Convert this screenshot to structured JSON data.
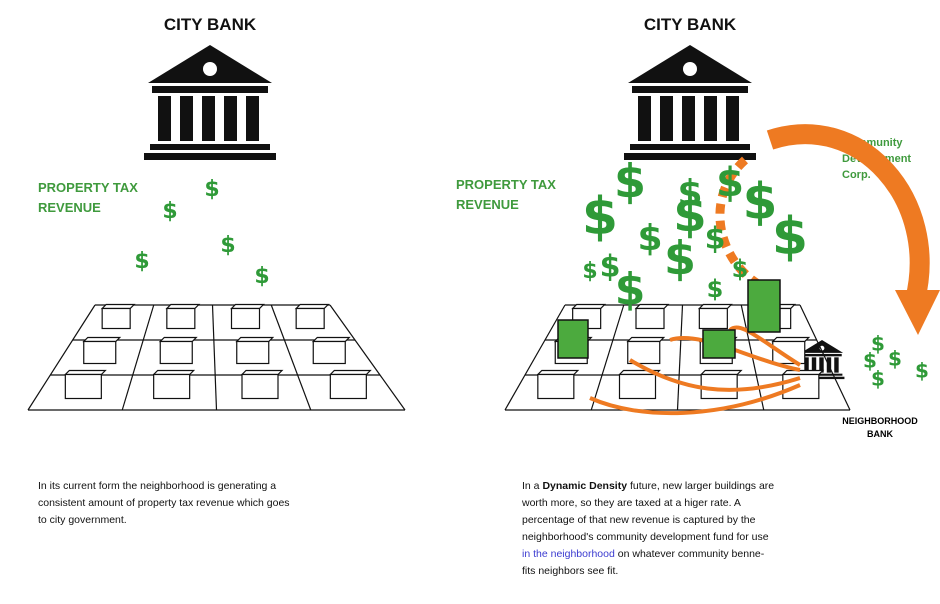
{
  "left": {
    "bank_title": "CITY BANK",
    "tax_label": [
      "PROPERTY TAX",
      "REVENUE"
    ],
    "caption_lines": [
      "In its current form the neighborhood is generating a",
      "consistent amount of property tax revenue which goes",
      "to city government."
    ]
  },
  "right": {
    "bank_title": "CITY BANK",
    "tax_label": [
      "PROPERTY TAX",
      "REVENUE"
    ],
    "cdc_label": [
      "Community",
      "Development",
      "Corp."
    ],
    "neighborhood_bank": [
      "NEIGHBORHOOD",
      "BANK"
    ],
    "caption_lines": [
      [
        "In a ",
        "Dynamic Density",
        " future, new larger buildings are"
      ],
      [
        "worth more, so they are taxed at a higer rate. A"
      ],
      [
        "percentage of that new revenue is captured by the"
      ],
      [
        "neighborhood's community development fund for use"
      ],
      [
        "in the neighborhood",
        " on whatever community benne-"
      ],
      [
        "fits neighbors see fit."
      ]
    ]
  },
  "dollar_symbol": "$"
}
